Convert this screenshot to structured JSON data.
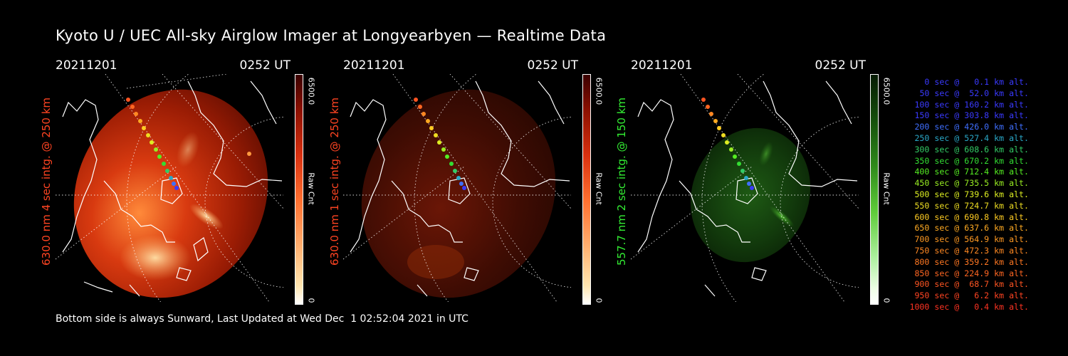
{
  "title": "Kyoto U / UEC All-sky Airglow Imager at Longyearbyen — Realtime Data",
  "footer": "Bottom side is always Sunward, Last Updated at Wed Dec  1 02:52:04 2021 in UTC",
  "panels": [
    {
      "date": "20211201",
      "time": "0252 UT",
      "side_label": "630.0 nm 4 sec intg. @ 250 km",
      "label_color": "#ff4422",
      "cbar_max": "6500.0",
      "cbar_min": "0",
      "cbar_unit": "Raw Cnt",
      "image_tone": "red-bright"
    },
    {
      "date": "20211201",
      "time": "0252 UT",
      "side_label": "630.0 nm 1 sec intg. @ 250 km",
      "label_color": "#ff4422",
      "cbar_max": "6500.0",
      "cbar_min": "0",
      "cbar_unit": "Raw Cnt",
      "image_tone": "red-dim"
    },
    {
      "date": "20211201",
      "time": "0252 UT",
      "side_label": "557.7 nm 2 sec intg. @ 150 km",
      "label_color": "#33ee33",
      "cbar_max": "6500.0",
      "cbar_min": "0",
      "cbar_unit": "Raw Cnt",
      "image_tone": "green"
    }
  ],
  "legend": [
    {
      "text": "0 sec @   0.1 km alt.",
      "color": "#3a3aff"
    },
    {
      "text": "50 sec @  52.0 km alt.",
      "color": "#3a3aff"
    },
    {
      "text": "100 sec @ 160.2 km alt.",
      "color": "#3a3aff"
    },
    {
      "text": "150 sec @ 303.8 km alt.",
      "color": "#3a3aff"
    },
    {
      "text": "200 sec @ 426.0 km alt.",
      "color": "#3f6fff"
    },
    {
      "text": "250 sec @ 527.4 km alt.",
      "color": "#2aa8c8"
    },
    {
      "text": "300 sec @ 608.6 km alt.",
      "color": "#33cc66"
    },
    {
      "text": "350 sec @ 670.2 km alt.",
      "color": "#33dd33"
    },
    {
      "text": "400 sec @ 712.4 km alt.",
      "color": "#55ee22"
    },
    {
      "text": "450 sec @ 735.5 km alt.",
      "color": "#99ee22"
    },
    {
      "text": "500 sec @ 739.6 km alt.",
      "color": "#ddee22"
    },
    {
      "text": "550 sec @ 724.7 km alt.",
      "color": "#eedd22"
    },
    {
      "text": "600 sec @ 690.8 km alt.",
      "color": "#ffcc22"
    },
    {
      "text": "650 sec @ 637.6 km alt.",
      "color": "#ffaa22"
    },
    {
      "text": "700 sec @ 564.9 km alt.",
      "color": "#ff9922"
    },
    {
      "text": "750 sec @ 472.3 km alt.",
      "color": "#ff8822"
    },
    {
      "text": "800 sec @ 359.2 km alt.",
      "color": "#ff7722"
    },
    {
      "text": "850 sec @ 224.9 km alt.",
      "color": "#ff6622"
    },
    {
      "text": "900 sec @  68.7 km alt.",
      "color": "#ff5522"
    },
    {
      "text": "950 sec @   6.2 km alt.",
      "color": "#ff4422"
    },
    {
      "text": "1000 sec @   0.4 km alt.",
      "color": "#ff3322"
    }
  ]
}
